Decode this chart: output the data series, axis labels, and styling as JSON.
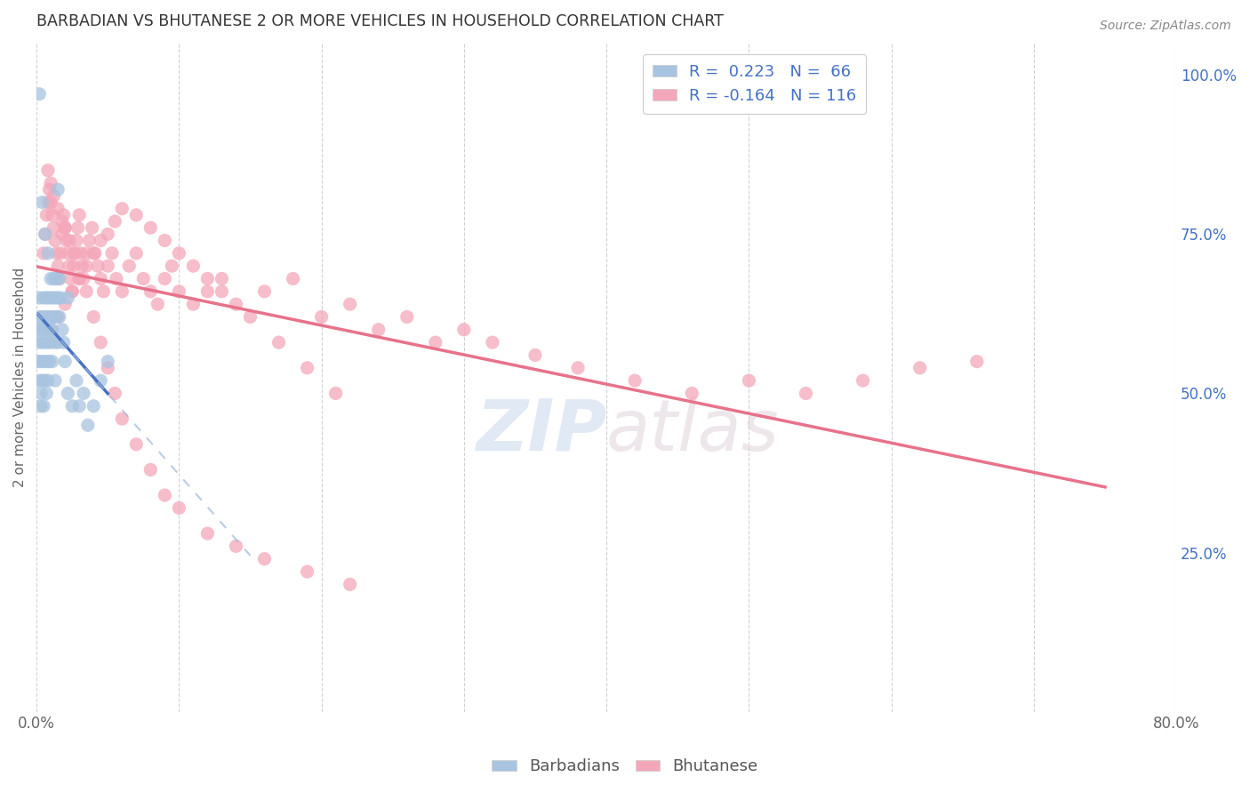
{
  "title": "BARBADIAN VS BHUTANESE 2 OR MORE VEHICLES IN HOUSEHOLD CORRELATION CHART",
  "source": "Source: ZipAtlas.com",
  "ylabel": "2 or more Vehicles in Household",
  "right_yticks": [
    "100.0%",
    "75.0%",
    "50.0%",
    "25.0%"
  ],
  "right_ytick_vals": [
    1.0,
    0.75,
    0.5,
    0.25
  ],
  "watermark_zip": "ZIP",
  "watermark_atlas": "atlas",
  "barbadian_color": "#a8c4e0",
  "bhutanese_color": "#f4a7b9",
  "trend_barbadian_color": "#4472c4",
  "trend_bhutanese_color": "#e8728a",
  "trend_barbadian_dashed_color": "#a8c4e0",
  "legend_text_color": "#4472c4",
  "title_color": "#333333",
  "background_color": "#ffffff",
  "xlim": [
    0.0,
    0.8
  ],
  "ylim": [
    0.0,
    1.05
  ],
  "xtick_positions": [
    0.0,
    0.1,
    0.2,
    0.3,
    0.4,
    0.5,
    0.6,
    0.7,
    0.8
  ],
  "xtick_labels": [
    "0.0%",
    "",
    "",
    "",
    "",
    "",
    "",
    "",
    "80.0%"
  ],
  "barbadian_x": [
    0.001,
    0.001,
    0.002,
    0.002,
    0.002,
    0.002,
    0.003,
    0.003,
    0.003,
    0.003,
    0.004,
    0.004,
    0.004,
    0.005,
    0.005,
    0.005,
    0.005,
    0.006,
    0.006,
    0.006,
    0.007,
    0.007,
    0.007,
    0.007,
    0.008,
    0.008,
    0.008,
    0.009,
    0.009,
    0.009,
    0.01,
    0.01,
    0.01,
    0.011,
    0.011,
    0.011,
    0.012,
    0.012,
    0.013,
    0.013,
    0.013,
    0.014,
    0.014,
    0.015,
    0.015,
    0.016,
    0.016,
    0.017,
    0.018,
    0.019,
    0.02,
    0.022,
    0.025,
    0.028,
    0.03,
    0.033,
    0.036,
    0.04,
    0.045,
    0.05,
    0.002,
    0.004,
    0.006,
    0.008,
    0.015,
    0.022
  ],
  "barbadian_y": [
    0.6,
    0.55,
    0.58,
    0.52,
    0.62,
    0.65,
    0.55,
    0.5,
    0.6,
    0.48,
    0.62,
    0.58,
    0.52,
    0.65,
    0.6,
    0.55,
    0.48,
    0.62,
    0.58,
    0.52,
    0.65,
    0.6,
    0.55,
    0.5,
    0.62,
    0.58,
    0.52,
    0.65,
    0.6,
    0.55,
    0.68,
    0.62,
    0.58,
    0.65,
    0.6,
    0.55,
    0.68,
    0.62,
    0.65,
    0.58,
    0.52,
    0.68,
    0.62,
    0.65,
    0.58,
    0.68,
    0.62,
    0.65,
    0.6,
    0.58,
    0.55,
    0.5,
    0.48,
    0.52,
    0.48,
    0.5,
    0.45,
    0.48,
    0.52,
    0.55,
    0.97,
    0.8,
    0.75,
    0.72,
    0.82,
    0.65
  ],
  "bhutanese_x": [
    0.005,
    0.006,
    0.007,
    0.008,
    0.009,
    0.01,
    0.011,
    0.012,
    0.013,
    0.014,
    0.015,
    0.016,
    0.017,
    0.018,
    0.019,
    0.02,
    0.021,
    0.022,
    0.023,
    0.024,
    0.025,
    0.026,
    0.027,
    0.028,
    0.029,
    0.03,
    0.031,
    0.032,
    0.033,
    0.035,
    0.037,
    0.039,
    0.041,
    0.043,
    0.045,
    0.047,
    0.05,
    0.053,
    0.056,
    0.06,
    0.065,
    0.07,
    0.075,
    0.08,
    0.085,
    0.09,
    0.095,
    0.1,
    0.11,
    0.12,
    0.13,
    0.14,
    0.16,
    0.18,
    0.2,
    0.22,
    0.24,
    0.26,
    0.28,
    0.3,
    0.32,
    0.35,
    0.38,
    0.42,
    0.46,
    0.5,
    0.54,
    0.58,
    0.62,
    0.66,
    0.008,
    0.01,
    0.012,
    0.015,
    0.018,
    0.02,
    0.023,
    0.026,
    0.03,
    0.035,
    0.04,
    0.045,
    0.05,
    0.055,
    0.06,
    0.07,
    0.08,
    0.09,
    0.1,
    0.12,
    0.14,
    0.16,
    0.19,
    0.22,
    0.01,
    0.015,
    0.02,
    0.025,
    0.03,
    0.035,
    0.04,
    0.045,
    0.05,
    0.055,
    0.06,
    0.07,
    0.08,
    0.09,
    0.1,
    0.11,
    0.12,
    0.13,
    0.15,
    0.17,
    0.19,
    0.21
  ],
  "bhutanese_y": [
    0.72,
    0.75,
    0.78,
    0.8,
    0.82,
    0.8,
    0.78,
    0.76,
    0.74,
    0.72,
    0.7,
    0.68,
    0.72,
    0.75,
    0.78,
    0.76,
    0.74,
    0.72,
    0.7,
    0.68,
    0.66,
    0.7,
    0.72,
    0.74,
    0.76,
    0.78,
    0.72,
    0.7,
    0.68,
    0.72,
    0.74,
    0.76,
    0.72,
    0.7,
    0.68,
    0.66,
    0.7,
    0.72,
    0.68,
    0.66,
    0.7,
    0.72,
    0.68,
    0.66,
    0.64,
    0.68,
    0.7,
    0.66,
    0.64,
    0.66,
    0.68,
    0.64,
    0.66,
    0.68,
    0.62,
    0.64,
    0.6,
    0.62,
    0.58,
    0.6,
    0.58,
    0.56,
    0.54,
    0.52,
    0.5,
    0.52,
    0.5,
    0.52,
    0.54,
    0.55,
    0.85,
    0.83,
    0.81,
    0.79,
    0.77,
    0.76,
    0.74,
    0.72,
    0.68,
    0.66,
    0.62,
    0.58,
    0.54,
    0.5,
    0.46,
    0.42,
    0.38,
    0.34,
    0.32,
    0.28,
    0.26,
    0.24,
    0.22,
    0.2,
    0.6,
    0.62,
    0.64,
    0.66,
    0.68,
    0.7,
    0.72,
    0.74,
    0.75,
    0.77,
    0.79,
    0.78,
    0.76,
    0.74,
    0.72,
    0.7,
    0.68,
    0.66,
    0.62,
    0.58,
    0.54,
    0.5
  ]
}
